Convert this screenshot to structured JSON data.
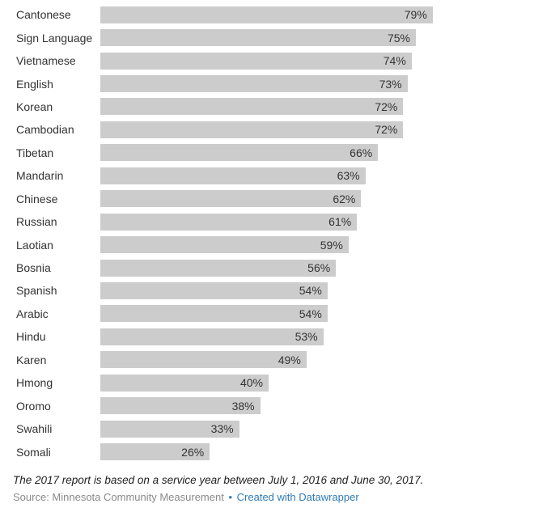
{
  "chart_data": {
    "type": "bar",
    "orientation": "horizontal",
    "title": "",
    "xlabel": "",
    "ylabel": "",
    "xlim": [
      0,
      100
    ],
    "grid": false,
    "legend": false,
    "value_labels": "inside-end",
    "value_suffix": "%",
    "categories": [
      "Cantonese",
      "Sign Language",
      "Vietnamese",
      "English",
      "Korean",
      "Cambodian",
      "Tibetan",
      "Mandarin",
      "Chinese",
      "Russian",
      "Laotian",
      "Bosnia",
      "Spanish",
      "Arabic",
      "Hindu",
      "Karen",
      "Hmong",
      "Oromo",
      "Swahili",
      "Somali"
    ],
    "values": [
      79,
      75,
      74,
      73,
      72,
      72,
      66,
      63,
      62,
      61,
      59,
      56,
      54,
      54,
      53,
      49,
      40,
      38,
      33,
      26
    ]
  },
  "footer": {
    "note": "The 2017 report is based on a service year between July 1, 2016 and June 30, 2017.",
    "source_text": "Source: Minnesota Community Measurement",
    "separator": "•",
    "attribution": "Created with Datawrapper"
  },
  "colors": {
    "bar": "#cccccc",
    "text": "#333333",
    "note": "#222222",
    "muted": "#8a8a8a",
    "link": "#2e7cb8"
  }
}
